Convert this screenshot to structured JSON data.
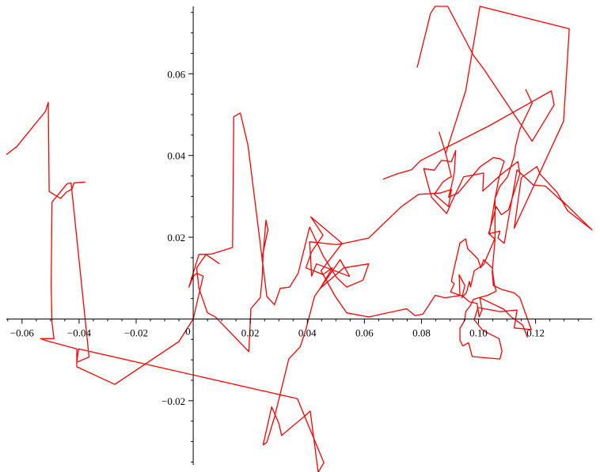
{
  "chart_data": {
    "type": "line",
    "title": "",
    "xlabel": "",
    "ylabel": "",
    "xlim": [
      -0.0655,
      0.1398
    ],
    "ylim": [
      -0.0357,
      0.0765
    ],
    "grid": false,
    "origin_label": "0",
    "x_ticks": [
      {
        "value": -0.06,
        "label": "−0.06"
      },
      {
        "value": -0.04,
        "label": "−0.04"
      },
      {
        "value": -0.02,
        "label": "−0.02"
      },
      {
        "value": 0.02,
        "label": "0.02"
      },
      {
        "value": 0.04,
        "label": "0.04"
      },
      {
        "value": 0.06,
        "label": "0.06"
      },
      {
        "value": 0.08,
        "label": "0.08"
      },
      {
        "value": 0.1,
        "label": "0.10"
      },
      {
        "value": 0.12,
        "label": "0.12"
      }
    ],
    "y_ticks": [
      {
        "value": 0.06,
        "label": "0.06"
      },
      {
        "value": 0.04,
        "label": "0.04"
      },
      {
        "value": 0.02,
        "label": "0.02"
      },
      {
        "value": -0.02,
        "label": "−0.02"
      }
    ],
    "colors": {
      "series": "#ff0000",
      "axis": "#000000"
    },
    "series": [
      {
        "points": [
          [
            0,
            0
          ],
          [
            -0.005,
            -0.0055
          ],
          [
            -0.0275,
            -0.016
          ],
          [
            -0.0408,
            -0.0117
          ],
          [
            -0.0408,
            -0.0073
          ],
          [
            -0.0515,
            -0.0053
          ],
          [
            -0.0535,
            -0.0048
          ],
          [
            -0.0488,
            -0.0048
          ],
          [
            -0.0495,
            -0.001
          ],
          [
            -0.0498,
            0.0082
          ],
          [
            -0.0495,
            0.0286
          ],
          [
            -0.0442,
            0.0331
          ],
          [
            -0.0428,
            0.0333
          ],
          [
            -0.0365,
            -0.0093
          ],
          [
            -0.0408,
            -0.0106
          ],
          [
            -0.0402,
            -0.0073
          ],
          [
            0.0365,
            -0.0195
          ],
          [
            0.0458,
            -0.0352
          ],
          [
            0.0455,
            -0.0355
          ],
          [
            0.0438,
            -0.0375
          ],
          [
            0.041,
            -0.0225
          ],
          [
            0.0395,
            -0.0235
          ],
          [
            0.031,
            -0.0285
          ],
          [
            0.03,
            -0.0255
          ],
          [
            0.0275,
            -0.0215
          ],
          [
            0.0245,
            -0.0308
          ],
          [
            0.0258,
            -0.0302
          ],
          [
            0.0285,
            -0.024
          ],
          [
            0.0335,
            -0.0098
          ],
          [
            0.0375,
            -0.0068
          ],
          [
            0.0395,
            -0.0025
          ],
          [
            0.0425,
            0.0055
          ],
          [
            0.0515,
            0.0145
          ],
          [
            0.0548,
            0.0105
          ],
          [
            0.0545,
            0.0105
          ],
          [
            0.0432,
            0.0135
          ],
          [
            0.0415,
            0.0105
          ],
          [
            0.0408,
            0.0189
          ],
          [
            0.0502,
            0.0182
          ],
          [
            0.0528,
            0.0185
          ],
          [
            0.0615,
            0.0198
          ],
          [
            0.0728,
            0.0274
          ],
          [
            0.079,
            0.0305
          ],
          [
            0.0865,
            0.0308
          ],
          [
            0.0905,
            0.0317
          ],
          [
            0.0895,
            0.0275
          ],
          [
            0.0845,
            0.0305
          ],
          [
            0.0875,
            0.0335
          ],
          [
            0.0895,
            0.0345
          ],
          [
            0.0905,
            0.0348
          ],
          [
            0.0885,
            0.0405
          ],
          [
            0.0862,
            0.0457
          ],
          [
            0.0885,
            0.0405
          ],
          [
            0.0955,
            0.0558
          ],
          [
            0.1005,
            0.0765
          ],
          [
            0.1318,
            0.071
          ],
          [
            0.1298,
            0.0484
          ],
          [
            0.1125,
            0.0222
          ],
          [
            0.115,
            0.0346
          ],
          [
            0.1205,
            0.0373
          ],
          [
            0.1215,
            0.0355
          ],
          [
            0.1275,
            0.031
          ],
          [
            0.1312,
            0.0265
          ],
          [
            0.1398,
            0.0218
          ],
          [
            0.1292,
            0.029
          ],
          [
            0.1305,
            0.028
          ],
          [
            0.1235,
            0.0325
          ],
          [
            0.1192,
            0.0328
          ],
          [
            0.1135,
            0.0365
          ],
          [
            0.109,
            0.0185
          ],
          [
            0.1068,
            0.0198
          ],
          [
            0.1075,
            0.0215
          ],
          [
            0.1035,
            0.0208
          ],
          [
            0.1062,
            0.0275
          ],
          [
            0.108,
            0.0255
          ],
          [
            0.1105,
            0.0267
          ],
          [
            0.1145,
            0.0355
          ],
          [
            0.1138,
            0.0385
          ],
          [
            0.1078,
            0.0353
          ],
          [
            0.1015,
            0.0313
          ],
          [
            0.1018,
            0.0357
          ],
          [
            0.0948,
            0.0348
          ],
          [
            0.0905,
            0.0285
          ],
          [
            0.0888,
            0.0258
          ],
          [
            0.0835,
            0.0298
          ],
          [
            0.0808,
            0.0368
          ],
          [
            0.0845,
            0.0364
          ],
          [
            0.087,
            0.0388
          ],
          [
            0.0905,
            0.0385
          ],
          [
            0.092,
            0.0412
          ],
          [
            0.0915,
            0.0356
          ],
          [
            0.0905,
            0.0325
          ],
          [
            0.0895,
            0.0298
          ],
          [
            0.0928,
            0.0308
          ],
          [
            0.1005,
            0.0372
          ],
          [
            0.1052,
            0.0395
          ],
          [
            0.1075,
            0.0392
          ],
          [
            0.109,
            0.0386
          ],
          [
            0.1072,
            0.0347
          ],
          [
            0.1058,
            0.0295
          ],
          [
            0.1058,
            0.0198
          ],
          [
            0.1018,
            0.0133
          ],
          [
            0.0985,
            0.0118
          ],
          [
            0.0972,
            0.0078
          ],
          [
            0.0968,
            0.0092
          ],
          [
            0.0958,
            0.0065
          ],
          [
            0.0942,
            0.0052
          ],
          [
            0.0952,
            0.0082
          ],
          [
            0.0932,
            0.0108
          ],
          [
            0.0935,
            0.0058
          ],
          [
            0.0902,
            0.0066
          ],
          [
            0.0915,
            0.0086
          ],
          [
            0.0905,
            0.0092
          ],
          [
            0.0912,
            0.0116
          ],
          [
            0.0935,
            0.0186
          ],
          [
            0.0955,
            0.0196
          ],
          [
            0.0962,
            0.0172
          ],
          [
            0.0998,
            0.0147
          ],
          [
            0.1008,
            0.0125
          ],
          [
            0.1018,
            0.0145
          ],
          [
            0.1048,
            0.0125
          ],
          [
            0.1055,
            0.0085
          ],
          [
            0.1062,
            0.0068
          ],
          [
            0.1032,
            0.0058
          ],
          [
            0.1012,
            0.0054
          ],
          [
            0.0982,
            0.0048
          ],
          [
            0.0972,
            0.0033
          ],
          [
            0.0955,
            0.0018
          ],
          [
            0.0952,
            -0.0003
          ],
          [
            0.0935,
            -0.0023
          ],
          [
            0.0935,
            -0.0052
          ],
          [
            0.0945,
            -0.0066
          ],
          [
            0.0965,
            -0.0058
          ],
          [
            0.0978,
            -0.0092
          ],
          [
            0.1075,
            -0.0098
          ],
          [
            0.1082,
            -0.0078
          ],
          [
            0.1072,
            -0.0048
          ],
          [
            0.1015,
            -0.0028
          ],
          [
            0.0985,
            -0.0002
          ],
          [
            0.0998,
            0.0028
          ],
          [
            0.1075,
            0.0018
          ],
          [
            0.1135,
            0.0022
          ],
          [
            0.1125,
            -0.0022
          ],
          [
            0.1185,
            -0.0026
          ],
          [
            0.1145,
            0.0052
          ],
          [
            0.1125,
            0.0064
          ],
          [
            0.1082,
            0.0072
          ],
          [
            0.1052,
            0.0082
          ],
          [
            0.1048,
            0.0115
          ],
          [
            0.1058,
            0.0195
          ],
          [
            0.1038,
            0.0208
          ],
          [
            0.1058,
            0.0295
          ],
          [
            0.1075,
            0.0325
          ],
          [
            0.1102,
            0.0348
          ],
          [
            0.1125,
            0.0398
          ],
          [
            0.113,
            0.0423
          ],
          [
            0.1145,
            0.0465
          ],
          [
            0.1188,
            0.0528
          ],
          [
            0.1165,
            0.0562
          ]
        ]
      },
      {
        "points": [
          [
            0,
            0
          ],
          [
            0.0035,
            0.0105
          ],
          [
            0.0012,
            0.0112
          ],
          [
            0,
            0.0104
          ],
          [
            -0.0015,
            0.0078
          ],
          [
            0.002,
            0.0158
          ],
          [
            0.0065,
            0.0159
          ],
          [
            0.0138,
            0.0175
          ],
          [
            0.0142,
            0.0495
          ],
          [
            0.0165,
            0.0504
          ],
          [
            0.0192,
            0.0425
          ],
          [
            0.0258,
            0.0055
          ],
          [
            0.0285,
            0.0035
          ],
          [
            0.0305,
            0.0075
          ],
          [
            0.0338,
            0.0078
          ],
          [
            0.0368,
            0.0112
          ],
          [
            0.0408,
            0.0225
          ],
          [
            0.0455,
            0.0155
          ],
          [
            0.0502,
            0.0102
          ],
          [
            0.0538,
            0.0078
          ],
          [
            0.0595,
            0.0095
          ],
          [
            0.0615,
            0.0135
          ],
          [
            0.0528,
            0.0125
          ],
          [
            0.0445,
            0.0075
          ],
          [
            0.0488,
            0.0125
          ],
          [
            0.0455,
            0.0109
          ],
          [
            0.0395,
            0.0125
          ],
          [
            0.0415,
            0.0165
          ],
          [
            0.0455,
            0.0205
          ],
          [
            0.0412,
            0.025
          ],
          [
            0.0522,
            0.0185
          ],
          [
            0.0448,
            0.0118
          ],
          [
            0.0498,
            0.0055
          ],
          [
            0.0538,
            0.0015
          ],
          [
            0.0615,
            0.0005
          ],
          [
            0.0748,
            0.0025
          ],
          [
            0.0778,
            0.0008
          ],
          [
            0.0805,
            0.0012
          ],
          [
            0.0848,
            0.0058
          ],
          [
            0.0882,
            0.0052
          ],
          [
            0.0942,
            0.0058
          ],
          [
            0.0968,
            0.0042
          ],
          [
            0.0995,
            0.0038
          ],
          [
            0.1002,
            0.0005
          ],
          [
            0.1012,
            0.0022
          ],
          [
            0.1005,
            0.0052
          ],
          [
            0.1088,
            0.0024
          ],
          [
            0.1115,
            0.0005
          ],
          [
            0.1155,
            -0.0015
          ],
          [
            0.1172,
            -0.0045
          ]
        ]
      },
      {
        "points": [
          [
            -0.0378,
            0.0335
          ],
          [
            -0.0418,
            0.0333
          ],
          [
            -0.0425,
            0.0318
          ],
          [
            -0.0445,
            0.031
          ],
          [
            -0.0465,
            0.0295
          ],
          [
            -0.0505,
            0.0312
          ],
          [
            -0.0508,
            0.053
          ],
          [
            -0.0518,
            0.0508
          ],
          [
            -0.0618,
            0.0422
          ],
          [
            -0.0655,
            0.0402
          ]
        ]
      },
      {
        "points": [
          [
            0.0785,
            0.0615
          ],
          [
            0.0832,
            0.0748
          ],
          [
            0.0848,
            0.0765
          ],
          [
            0.0892,
            0.0765
          ],
          [
            0.0982,
            0.0645
          ],
          [
            0.1018,
            0.0612
          ],
          [
            0.1188,
            0.0435
          ],
          [
            0.1265,
            0.0524
          ],
          [
            0.1255,
            0.0558
          ],
          [
            0.1035,
            0.0472
          ],
          [
            0.0798,
            0.0388
          ],
          [
            0.0765,
            0.0365
          ],
          [
            0.0715,
            0.0355
          ],
          [
            0.0665,
            0.0342
          ]
        ]
      },
      {
        "points": [
          [
            0.0242,
            0.0152
          ],
          [
            0.0262,
            0.0218
          ],
          [
            0.0255,
            0.0242
          ],
          [
            0.0245,
            0.0158
          ],
          [
            0.0242,
            0.0102
          ],
          [
            0.0235,
            0.0052
          ],
          [
            0.0202,
            0.0025
          ],
          [
            0.0195,
            -0.008
          ],
          [
            0.0078,
            0.0005
          ],
          [
            0.005,
            0.0015
          ],
          [
            0.002,
            0.0075
          ],
          [
            0.0012,
            0.0125
          ],
          [
            0.0045,
            0.0158
          ],
          [
            0.0092,
            0.0135
          ]
        ]
      }
    ]
  }
}
